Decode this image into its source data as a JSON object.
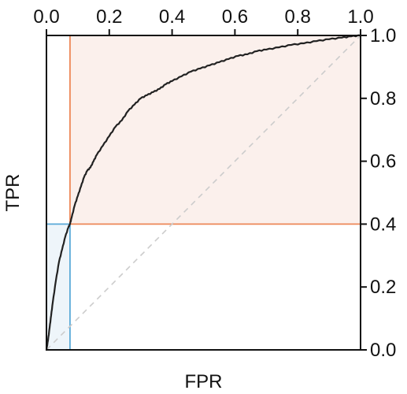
{
  "chart_data": {
    "type": "line",
    "title": "",
    "xlabel": "FPR",
    "ylabel": "TPR",
    "xlim": [
      0.0,
      1.0
    ],
    "ylim": [
      0.0,
      1.0
    ],
    "x_axis_position": "top",
    "y_axis_position": "right",
    "x_ticks": [
      "0.0",
      "0.2",
      "0.4",
      "0.6",
      "0.8",
      "1.0"
    ],
    "y_ticks": [
      "0.0",
      "0.2",
      "0.4",
      "0.6",
      "0.8",
      "1.0"
    ],
    "grid": false,
    "legend": "none",
    "series": [
      {
        "color": "#222222",
        "x": [
          0.0,
          0.005,
          0.01,
          0.015,
          0.02,
          0.03,
          0.04,
          0.05,
          0.06,
          0.07,
          0.075,
          0.08,
          0.09,
          0.1,
          0.11,
          0.12,
          0.13,
          0.14,
          0.15,
          0.16,
          0.18,
          0.2,
          0.22,
          0.24,
          0.26,
          0.28,
          0.3,
          0.32,
          0.34,
          0.36,
          0.38,
          0.4,
          0.43,
          0.46,
          0.49,
          0.52,
          0.55,
          0.58,
          0.61,
          0.64,
          0.67,
          0.7,
          0.74,
          0.78,
          0.82,
          0.86,
          0.9,
          0.94,
          0.97,
          1.0
        ],
        "y": [
          0.0,
          0.03,
          0.07,
          0.11,
          0.15,
          0.22,
          0.28,
          0.32,
          0.36,
          0.39,
          0.4,
          0.42,
          0.46,
          0.49,
          0.52,
          0.55,
          0.57,
          0.58,
          0.6,
          0.62,
          0.65,
          0.68,
          0.71,
          0.73,
          0.76,
          0.78,
          0.8,
          0.81,
          0.82,
          0.83,
          0.845,
          0.855,
          0.87,
          0.885,
          0.895,
          0.905,
          0.915,
          0.925,
          0.935,
          0.94,
          0.95,
          0.955,
          0.962,
          0.97,
          0.975,
          0.982,
          0.988,
          0.993,
          0.997,
          1.0
        ]
      }
    ],
    "reference_diagonal": {
      "x": [
        0.0,
        1.0
      ],
      "y": [
        0.0,
        1.0
      ],
      "color": "#cccccc",
      "style": "dashed"
    },
    "threshold_point": {
      "fpr": 0.075,
      "tpr": 0.4
    },
    "shaded_regions": [
      {
        "x": [
          0.075,
          1.0
        ],
        "y": [
          0.4,
          1.0
        ],
        "fill": "#fbf0ec",
        "line_color": "#ee8858"
      },
      {
        "x": [
          0.0,
          0.075
        ],
        "y": [
          0.0,
          0.4
        ],
        "fill": "#eef5fa",
        "line_color": "#5aaad8"
      }
    ]
  }
}
